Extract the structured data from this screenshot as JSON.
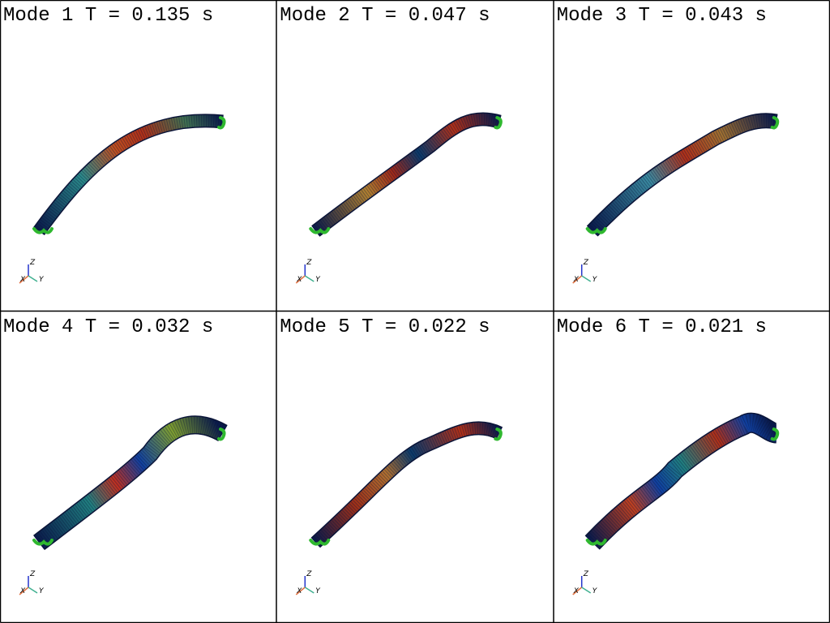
{
  "panels": [
    {
      "title": "Mode 1  T = 0.135 s"
    },
    {
      "title": "Mode 2  T = 0.047 s"
    },
    {
      "title": "Mode 3  T = 0.043 s"
    },
    {
      "title": "Mode 4  T = 0.032 s"
    },
    {
      "title": "Mode 5  T = 0.022 s"
    },
    {
      "title": "Mode 6  T = 0.021 s"
    }
  ],
  "axes_labels": {
    "x": "X",
    "y": "Y",
    "z": "Z"
  }
}
